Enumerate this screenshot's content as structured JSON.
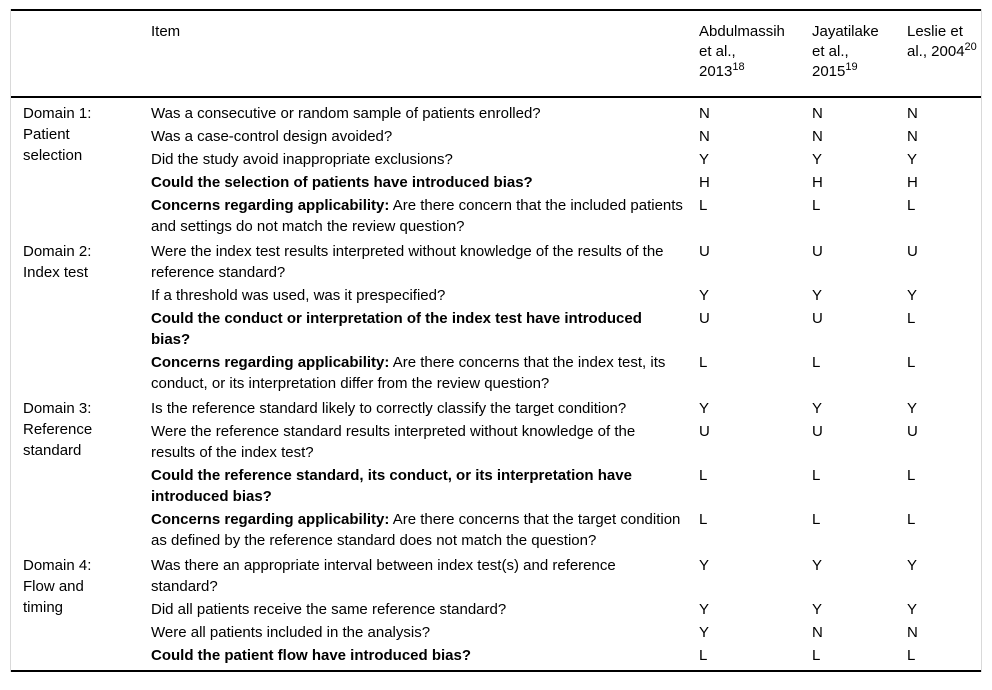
{
  "table": {
    "header": {
      "item_label": "Item",
      "studies": [
        {
          "name": "Abdulmassih et al., 2013",
          "ref": "18"
        },
        {
          "name": "Jayatilake et al., 2015",
          "ref": "19"
        },
        {
          "name": "Leslie et al., 2004",
          "ref": "20"
        }
      ]
    },
    "domains": [
      {
        "label": "Domain 1:",
        "sublabel": "Patient selection",
        "rows": [
          {
            "text": "Was a consecutive or random sample of patients enrolled?",
            "bold": false,
            "ratings": [
              "N",
              "N",
              "N"
            ]
          },
          {
            "text": "Was a case-control design avoided?",
            "bold": false,
            "ratings": [
              "N",
              "N",
              "N"
            ]
          },
          {
            "text": "Did the study avoid inappropriate exclusions?",
            "bold": false,
            "ratings": [
              "Y",
              "Y",
              "Y"
            ]
          },
          {
            "text": "Could the selection of patients have introduced bias?",
            "bold": true,
            "ratings": [
              "H",
              "H",
              "H"
            ]
          },
          {
            "lead": "Concerns regarding applicability:",
            "text": " Are there concern that the included patients and settings do not match the review question?",
            "bold": false,
            "ratings": [
              "L",
              "L",
              "L"
            ]
          }
        ]
      },
      {
        "label": "Domain 2:",
        "sublabel": "Index test",
        "rows": [
          {
            "text": "Were the index test results interpreted without knowledge of the results of the reference standard?",
            "bold": false,
            "ratings": [
              "U",
              "U",
              "U"
            ]
          },
          {
            "text": "If a threshold was used, was it prespecified?",
            "bold": false,
            "ratings": [
              "Y",
              "Y",
              "Y"
            ]
          },
          {
            "text": "Could the conduct or interpretation of the index test have introduced bias?",
            "bold": true,
            "ratings": [
              "U",
              "U",
              "L"
            ]
          },
          {
            "lead": "Concerns regarding applicability:",
            "text": " Are there concerns that the index test, its conduct, or its interpretation differ from the review question?",
            "bold": false,
            "ratings": [
              "L",
              "L",
              "L"
            ]
          }
        ]
      },
      {
        "label": "Domain 3:",
        "sublabel": "Reference standard",
        "rows": [
          {
            "text": "Is the reference standard likely to correctly classify the target condition?",
            "bold": false,
            "ratings": [
              "Y",
              "Y",
              "Y"
            ]
          },
          {
            "text": "Were the reference standard results interpreted without knowledge of the results of the index test?",
            "bold": false,
            "ratings": [
              "U",
              "U",
              "U"
            ]
          },
          {
            "text": "Could the reference standard, its conduct, or its interpretation have introduced bias?",
            "bold": true,
            "ratings": [
              "L",
              "L",
              "L"
            ]
          },
          {
            "lead": "Concerns regarding applicability:",
            "text": " Are there concerns that the target condition as defined by the reference standard does not match the question?",
            "bold": false,
            "ratings": [
              "L",
              "L",
              "L"
            ]
          }
        ]
      },
      {
        "label": "Domain 4:",
        "sublabel": "Flow and timing",
        "rows": [
          {
            "text": "Was there an appropriate interval between index test(s) and reference standard?",
            "bold": false,
            "ratings": [
              "Y",
              "Y",
              "Y"
            ]
          },
          {
            "text": "Did all patients receive the same reference standard?",
            "bold": false,
            "ratings": [
              "Y",
              "Y",
              "Y"
            ]
          },
          {
            "text": "Were all patients included in the analysis?",
            "bold": false,
            "ratings": [
              "Y",
              "N",
              "N"
            ]
          },
          {
            "text": "Could the patient flow have introduced bias?",
            "bold": true,
            "ratings": [
              "L",
              "L",
              "L"
            ]
          }
        ]
      }
    ]
  }
}
